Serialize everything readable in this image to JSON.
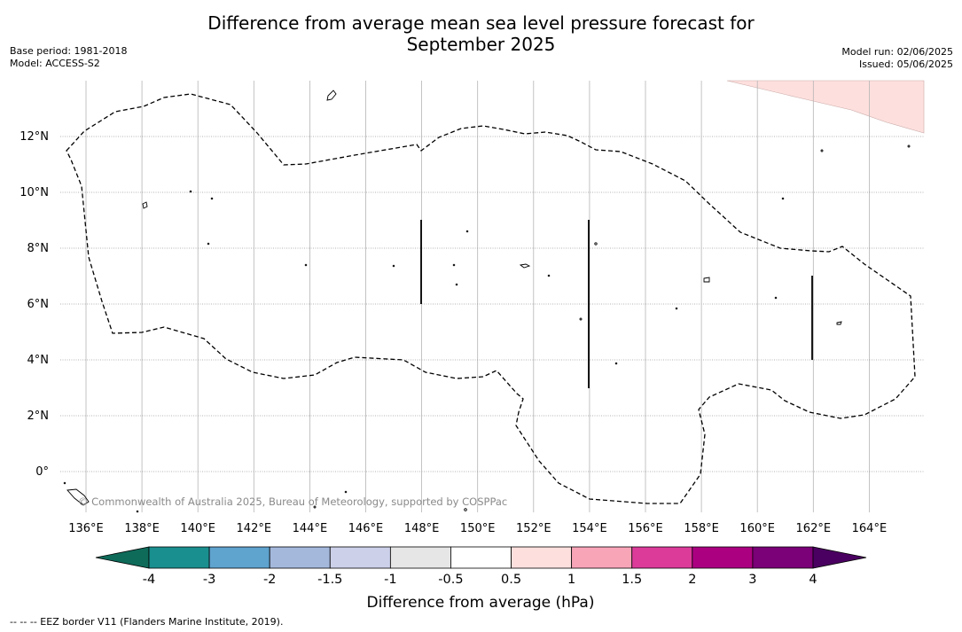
{
  "header": {
    "title_line1": "Difference from average mean sea level pressure forecast for",
    "title_line2": "September 2025",
    "base_period": "Base period: 1981-2018",
    "model": "Model: ACCESS-S2",
    "model_run": "Model run: 02/06/2025",
    "issued": "Issued: 05/06/2025"
  },
  "map": {
    "lat_labels": [
      "12°N",
      "10°N",
      "8°N",
      "6°N",
      "4°N",
      "2°N",
      "0°"
    ],
    "lon_labels": [
      "136°E",
      "138°E",
      "140°E",
      "142°E",
      "144°E",
      "146°E",
      "148°E",
      "150°E",
      "152°E",
      "154°E",
      "156°E",
      "158°E",
      "160°E",
      "162°E",
      "164°E"
    ],
    "copyright": "© Commonwealth of Australia 2025, Bureau of Meteorology, supported by COSPPac"
  },
  "legend": {
    "ticks": [
      "-4",
      "-3",
      "-2",
      "-1.5",
      "-1",
      "-0.5",
      "0.5",
      "1",
      "1.5",
      "2",
      "3",
      "4"
    ],
    "colors": [
      "#1a8f8f",
      "#5fa3cf",
      "#a4b8dc",
      "#ccd0e8",
      "#e6e6e6",
      "#ffffff",
      "#fde0de",
      "#f8a5b8",
      "#dc3b9a",
      "#ab0180",
      "#7a0177"
    ],
    "low_extend_color": "#0e6b5a",
    "high_extend_color": "#4a0060",
    "label": "Difference from average (hPa)"
  },
  "footnote": "--  --  -- EEZ border V11 (Flanders Marine Institute, 2019)."
}
